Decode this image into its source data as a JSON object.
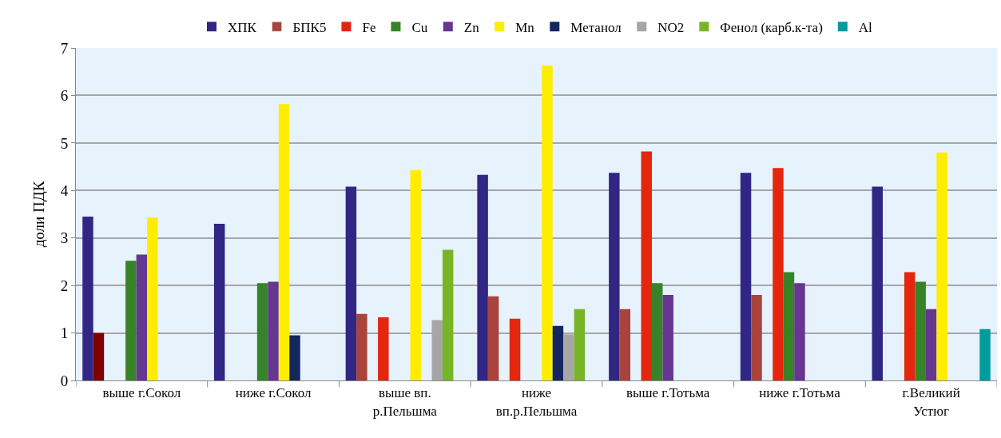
{
  "chart_data": {
    "type": "bar",
    "ylabel": "доли ПДК",
    "categories": [
      "выше г.Сокол",
      "ниже г.Сокол",
      "выше вп.\nр.Пельшма",
      "ниже\nвп.р.Пельшма",
      "выше г.Тотьма",
      "ниже г.Тотьма",
      "г.Великий\nУстюг"
    ],
    "series": [
      {
        "name": "ХПК",
        "color": "#312683",
        "values": [
          3.45,
          3.3,
          4.08,
          4.33,
          4.37,
          4.37,
          4.08
        ]
      },
      {
        "name": "БПК5",
        "color": "#a9433c",
        "colors": [
          "#800000",
          "#a9433c",
          "#a9433c",
          "#a9433c",
          "#a9433c",
          "#a9433c",
          "#a9433c"
        ],
        "values": [
          1.0,
          null,
          1.4,
          1.77,
          1.5,
          1.8,
          null
        ]
      },
      {
        "name": "Fe",
        "color": "#e5260f",
        "values": [
          null,
          null,
          1.33,
          1.3,
          4.82,
          4.47,
          2.28
        ]
      },
      {
        "name": "Cu",
        "color": "#378328",
        "values": [
          2.52,
          2.05,
          null,
          null,
          2.05,
          2.28,
          2.08
        ]
      },
      {
        "name": "Zn",
        "color": "#663690",
        "values": [
          2.65,
          2.08,
          null,
          null,
          1.8,
          2.05,
          1.5
        ]
      },
      {
        "name": "Mn",
        "color": "#ffed00",
        "values": [
          3.43,
          5.82,
          4.43,
          6.63,
          null,
          null,
          4.8
        ]
      },
      {
        "name": "Метанол",
        "color": "#13265e",
        "values": [
          null,
          0.95,
          null,
          1.15,
          null,
          null,
          null
        ]
      },
      {
        "name": "NO2",
        "color": "#a6a6a6",
        "values": [
          null,
          null,
          1.27,
          0.97,
          null,
          null,
          null
        ]
      },
      {
        "name": "Фенол (карб.к-та)",
        "color": "#78b526",
        "values": [
          null,
          null,
          2.75,
          1.5,
          null,
          null,
          null
        ]
      },
      {
        "name": "Al",
        "color": "#009b9a",
        "values": [
          null,
          null,
          null,
          null,
          null,
          null,
          1.08
        ]
      }
    ],
    "ylim": [
      0,
      7
    ],
    "yticks": [
      0,
      1,
      2,
      3,
      4,
      5,
      6,
      7
    ],
    "grid": "y",
    "legend": "top"
  }
}
